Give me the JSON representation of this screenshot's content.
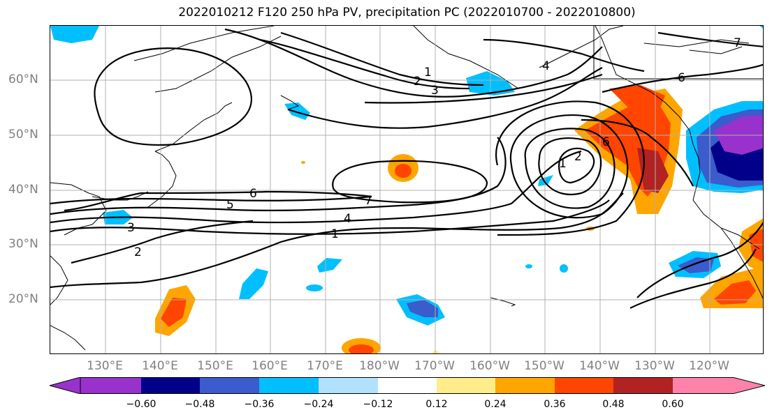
{
  "title": "2022010212 F120 250 hPa PV, precipitation PC (2022010700 - 2022010800)",
  "map": {
    "lat_labels": [
      "60°N",
      "50°N",
      "40°N",
      "30°N",
      "20°N"
    ],
    "lon_labels": [
      "130°E",
      "140°E",
      "150°E",
      "160°E",
      "170°E",
      "180°W",
      "170°W",
      "160°W",
      "150°W",
      "140°W",
      "130°W",
      "120°W"
    ],
    "contour_labels": [
      "1",
      "2",
      "3",
      "4",
      "5",
      "6",
      "7",
      "1",
      "2",
      "4",
      "6",
      "7",
      "6",
      "1",
      "2",
      "3"
    ]
  },
  "colorbar": {
    "colors": [
      "#9932cc",
      "#00008b",
      "#3a5ccc",
      "#00bfff",
      "#b0e2ff",
      "#ffffff",
      "#ffec8b",
      "#ffa500",
      "#ff4500",
      "#b22222",
      "#ff82ab"
    ],
    "ticks": [
      "−0.60",
      "−0.48",
      "−0.36",
      "−0.24",
      "−0.12",
      "0.12",
      "0.24",
      "0.36",
      "0.48",
      "0.60"
    ]
  }
}
